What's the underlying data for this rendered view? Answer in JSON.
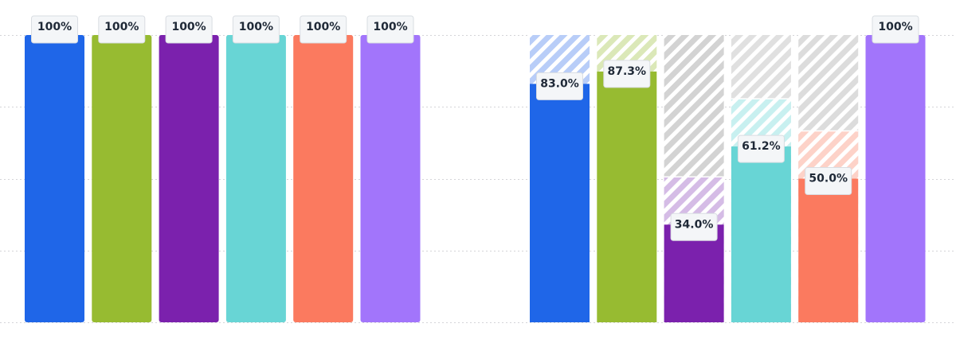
{
  "chart_data": {
    "type": "bar",
    "title": "",
    "xlabel": "",
    "ylabel": "",
    "ylim": [
      0,
      100
    ],
    "grid": true,
    "groups": [
      {
        "bars": [
          {
            "value": 100,
            "label": "100%",
            "color": "#1f66e8"
          },
          {
            "value": 100,
            "label": "100%",
            "color": "#97bb31"
          },
          {
            "value": 100,
            "label": "100%",
            "color": "#7b21ad"
          },
          {
            "value": 100,
            "label": "100%",
            "color": "#68d5d5"
          },
          {
            "value": 100,
            "label": "100%",
            "color": "#fb7a5f"
          },
          {
            "value": 100,
            "label": "100%",
            "color": "#a275fb"
          }
        ]
      },
      {
        "bars": [
          {
            "value": 83.0,
            "label": "83.0%",
            "color": "#1f66e8",
            "remainder_color": "#b8cdf8"
          },
          {
            "value": 87.3,
            "label": "87.3%",
            "color": "#97bb31",
            "remainder_color": "#dbe8b8"
          },
          {
            "value": 34.0,
            "label": "34.0%",
            "color": "#7b21ad",
            "remainder_color": "#d5bce6",
            "gap_color": "#d3d3d3"
          },
          {
            "value": 61.2,
            "label": "61.2%",
            "color": "#68d5d5",
            "remainder_color": "#c8f0f0",
            "gap_color": "#e0e0e0"
          },
          {
            "value": 50.0,
            "label": "50.0%",
            "color": "#fb7a5f",
            "remainder_color": "#fdd2c8",
            "gap_color": "#dcdcdc"
          },
          {
            "value": 100,
            "label": "100%",
            "color": "#a275fb"
          }
        ]
      }
    ]
  }
}
